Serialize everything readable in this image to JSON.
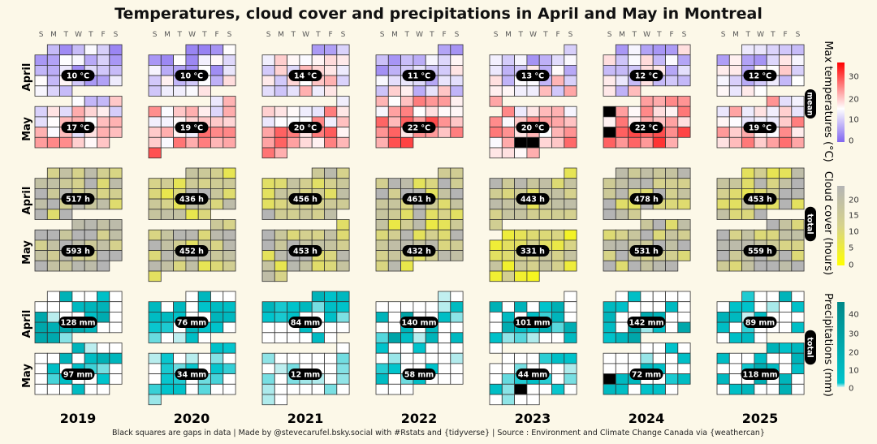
{
  "title": "Temperatures, cloud cover and precipitations in April and May in Montreal",
  "footer": "Black squares are gaps in data | Made by @stevecarufel.bsky.social with #Rstats and {tidyverse} | Source : Environment and Climate Change Canada via {weathercan}",
  "weekday_labels": [
    "S",
    "M",
    "T",
    "W",
    "T",
    "F",
    "S"
  ],
  "month_labels": [
    "April",
    "May"
  ],
  "colors": {
    "background": "#fcf8e8",
    "temp_low": "#8066f0",
    "temp_mid": "#ffffff",
    "temp_high": "#ff0000",
    "cloud_low": "#ffff00",
    "cloud_mid": "#d6d28c",
    "cloud_high": "#b4b4b4",
    "precip_low": "#00c4cc",
    "precip_high": "#008888",
    "gap": "#000000"
  },
  "chart_data": {
    "type": "heatmap",
    "title": "Temperatures, cloud cover and precipitations in April and May in Montreal",
    "years": [
      "2019",
      "2020",
      "2021",
      "2022",
      "2023",
      "2024",
      "2025"
    ],
    "panels": [
      {
        "key": "temp",
        "legend_title": "Max temperatures (°C)",
        "summary_label": "mean",
        "legend_ticks": [
          "0",
          "10",
          "20",
          "30"
        ],
        "scale_range": [
          0,
          36
        ],
        "april": [
          "10 °C",
          "10 °C",
          "14 °C",
          "11 °C",
          "13 °C",
          "12 °C",
          "12 °C"
        ],
        "may": [
          "17 °C",
          "19 °C",
          "20 °C",
          "22 °C",
          "20 °C",
          "22 °C",
          "19 °C"
        ],
        "april_values": [
          10,
          10,
          14,
          11,
          13,
          12,
          12
        ],
        "may_values": [
          17,
          19,
          20,
          22,
          20,
          22,
          19
        ],
        "gaps": {
          "2023": {
            "may": [
              23,
              24
            ]
          },
          "2024": {
            "may": [
              5,
              19
            ]
          }
        }
      },
      {
        "key": "cloud",
        "legend_title": "Cloud cover (hours)",
        "summary_label": "total",
        "legend_ticks": [
          "0",
          "5",
          "10",
          "15",
          "20"
        ],
        "scale_range": [
          0,
          24
        ],
        "april": [
          "517 h",
          "436 h",
          "456 h",
          "461 h",
          "443 h",
          "478 h",
          "453 h"
        ],
        "may": [
          "593 h",
          "452 h",
          "453 h",
          "432 h",
          "331 h",
          "531 h",
          "559 h"
        ],
        "april_values": [
          517,
          436,
          456,
          461,
          443,
          478,
          453
        ],
        "may_values": [
          593,
          452,
          453,
          432,
          331,
          531,
          559
        ],
        "gaps": {}
      },
      {
        "key": "precip",
        "legend_title": "Precipitations (mm)",
        "summary_label": "total",
        "legend_ticks": [
          "0",
          "10",
          "20",
          "30",
          "40"
        ],
        "scale_range": [
          0,
          45
        ],
        "april": [
          "128 mm",
          "76 mm",
          "84 mm",
          "140 mm",
          "101 mm",
          "142 mm",
          "89 mm"
        ],
        "may": [
          "97 mm",
          "34 mm",
          "12 mm",
          "58 mm",
          "44 mm",
          "72 mm",
          "118 mm"
        ],
        "april_values": [
          128,
          76,
          84,
          140,
          101,
          142,
          89
        ],
        "may_values": [
          97,
          34,
          12,
          58,
          44,
          72,
          118
        ],
        "gaps": {
          "2023": {
            "may": [
              23
            ]
          },
          "2024": {
            "may": [
              19
            ]
          }
        }
      }
    ]
  }
}
